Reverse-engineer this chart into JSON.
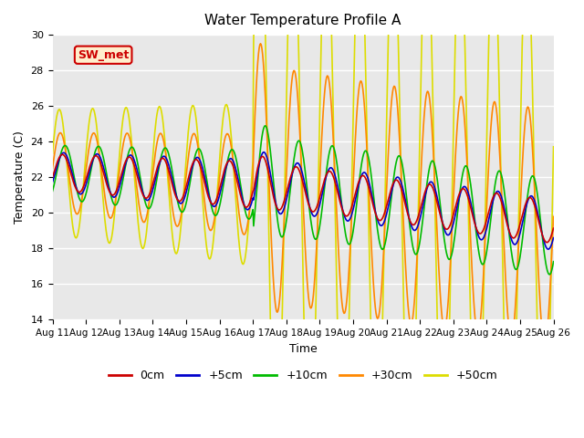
{
  "title": "Water Temperature Profile A",
  "xlabel": "Time",
  "ylabel": "Temperature (C)",
  "ylim": [
    14,
    30
  ],
  "yticks": [
    14,
    16,
    18,
    20,
    22,
    24,
    26,
    28,
    30
  ],
  "xtick_labels": [
    "Aug 11",
    "Aug 12",
    "Aug 13",
    "Aug 14",
    "Aug 15",
    "Aug 16",
    "Aug 17",
    "Aug 18",
    "Aug 19",
    "Aug 20",
    "Aug 21",
    "Aug 22",
    "Aug 23",
    "Aug 24",
    "Aug 25",
    "Aug 26"
  ],
  "legend_entries": [
    "0cm",
    "+5cm",
    "+10cm",
    "+30cm",
    "+50cm"
  ],
  "legend_colors": [
    "#cc0000",
    "#0000cc",
    "#00bb00",
    "#ff8800",
    "#dddd00"
  ],
  "annotation_text": "SW_met",
  "annotation_color": "#cc0000",
  "annotation_bg": "#ffeecc",
  "bg_color": "#e8e8e8",
  "fig_bg": "#ffffff",
  "grid_color": "#ffffff"
}
